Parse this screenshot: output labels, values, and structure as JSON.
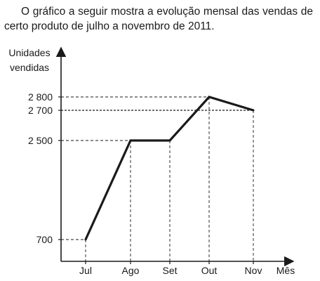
{
  "statement": "O gráfico a seguir mostra a evolução mensal das vendas de certo produto de julho a novembro de 2011.",
  "chart_data": {
    "type": "line",
    "title": "",
    "ylabel_line1": "Unidades",
    "ylabel_line2": "vendidas",
    "xlabel": "Mês",
    "categories": [
      "Jul",
      "Ago",
      "Set",
      "Out",
      "Nov"
    ],
    "series": [
      {
        "values": [
          700,
          2500,
          2500,
          2800,
          2700
        ]
      }
    ],
    "yticks": [
      {
        "value": 700,
        "label": "700"
      },
      {
        "value": 2500,
        "label": "2 500"
      },
      {
        "value": 2700,
        "label": "2 700"
      },
      {
        "value": 2800,
        "label": "2 800"
      }
    ],
    "grid": false,
    "guide_lines": "dashed"
  }
}
